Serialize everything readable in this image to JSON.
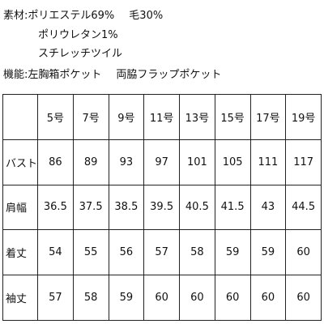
{
  "material": {
    "label": "素材:",
    "line1_part1": "ポリエステル69%",
    "line1_part2": "毛30%",
    "line2": "ポリウレタン1%",
    "line3": "スチレッチツイル"
  },
  "features": {
    "label": "機能:",
    "part1": "左胸箱ポケット",
    "part2": "両脇フラップポケット"
  },
  "table": {
    "headers": [
      "",
      "5号",
      "7号",
      "9号",
      "11号",
      "13号",
      "15号",
      "17号",
      "19号"
    ],
    "rows": [
      {
        "label": "バスト",
        "values": [
          "86",
          "89",
          "93",
          "97",
          "101",
          "105",
          "111",
          "117"
        ]
      },
      {
        "label": "肩幅",
        "values": [
          "36.5",
          "37.5",
          "38.5",
          "39.5",
          "40.5",
          "41.5",
          "43",
          "44.5"
        ]
      },
      {
        "label": "着丈",
        "values": [
          "54",
          "55",
          "56",
          "57",
          "58",
          "59",
          "59",
          "60"
        ]
      },
      {
        "label": "袖丈",
        "values": [
          "57",
          "58",
          "59",
          "60",
          "60",
          "60",
          "60",
          "60"
        ]
      }
    ]
  }
}
